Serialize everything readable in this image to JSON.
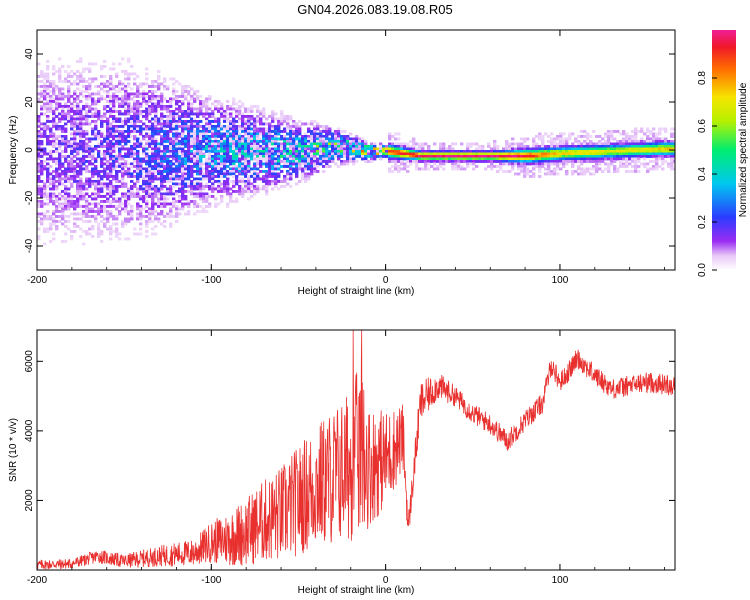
{
  "title": "GN04.2026.083.19.08.R05",
  "chart_data": [
    {
      "type": "heatmap",
      "xlabel": "Height of straight line (km)",
      "ylabel": "Frequency (Hz)",
      "xlim": [
        -200,
        166
      ],
      "ylim": [
        -50,
        50
      ],
      "xticks": [
        -200,
        -100,
        0,
        100
      ],
      "xtick_labels": [
        "-200",
        "-100",
        "0",
        "100"
      ],
      "yticks": [
        -40,
        -20,
        0,
        20,
        40
      ],
      "ytick_labels": [
        "-40",
        "-20",
        "0",
        "20",
        "40"
      ],
      "colorbar": {
        "label": "Normalized spectral amplitude",
        "range": [
          0,
          1
        ],
        "ticks": [
          0.0,
          0.2,
          0.4,
          0.6,
          0.8
        ],
        "tick_labels": [
          "0.0",
          "0.2",
          "0.4",
          "0.6",
          "0.8"
        ]
      },
      "description_points": {
        "height_km": [
          -200,
          -150,
          -100,
          -50,
          -30,
          -10,
          0,
          20,
          60,
          80,
          100,
          130,
          160
        ],
        "center_frequency_hz": [
          0,
          0,
          0,
          0,
          2,
          0,
          0,
          -2,
          -2,
          -2,
          -1,
          0,
          1
        ],
        "spread_hz": [
          50,
          45,
          25,
          14,
          8,
          4,
          3,
          2,
          2,
          3,
          3,
          3,
          3
        ],
        "peak_amplitude": [
          0.15,
          0.2,
          0.35,
          0.45,
          0.55,
          0.75,
          0.85,
          0.95,
          0.95,
          0.9,
          0.7,
          0.65,
          0.7
        ]
      }
    },
    {
      "type": "line",
      "xlabel": "Height of straight line (km)",
      "ylabel": "SNR (10 * v/v)",
      "xlim": [
        -200,
        166
      ],
      "ylim": [
        0,
        6900
      ],
      "xticks": [
        -200,
        -100,
        0,
        100
      ],
      "xtick_labels": [
        "-200",
        "-100",
        "0",
        "100"
      ],
      "yticks": [
        2000,
        4000,
        6000
      ],
      "ytick_labels": [
        "2000",
        "4000",
        "6000"
      ],
      "color": "#e8312f",
      "x": [
        -200,
        -180,
        -165,
        -150,
        -130,
        -110,
        -100,
        -90,
        -80,
        -70,
        -60,
        -50,
        -40,
        -30,
        -20,
        -14,
        -10,
        0,
        10,
        13,
        20,
        30,
        40,
        50,
        60,
        70,
        80,
        90,
        95,
        100,
        105,
        110,
        120,
        130,
        140,
        150,
        166
      ],
      "y": [
        150,
        180,
        400,
        250,
        400,
        500,
        800,
        900,
        1100,
        1400,
        1600,
        2000,
        2400,
        2700,
        3000,
        3500,
        3000,
        3200,
        3800,
        1200,
        4800,
        5300,
        5000,
        4500,
        4200,
        3700,
        4300,
        4800,
        5900,
        5400,
        5700,
        6100,
        5600,
        5200,
        5300,
        5400,
        5300
      ],
      "noise_envelope": [
        150,
        150,
        200,
        200,
        300,
        400,
        600,
        800,
        1000,
        1200,
        1400,
        1600,
        1800,
        2000,
        2200,
        2600,
        1800,
        1400,
        1000,
        400,
        600,
        400,
        300,
        300,
        300,
        300,
        300,
        300,
        300,
        300,
        300,
        300,
        300,
        300,
        300,
        300,
        300
      ]
    }
  ]
}
